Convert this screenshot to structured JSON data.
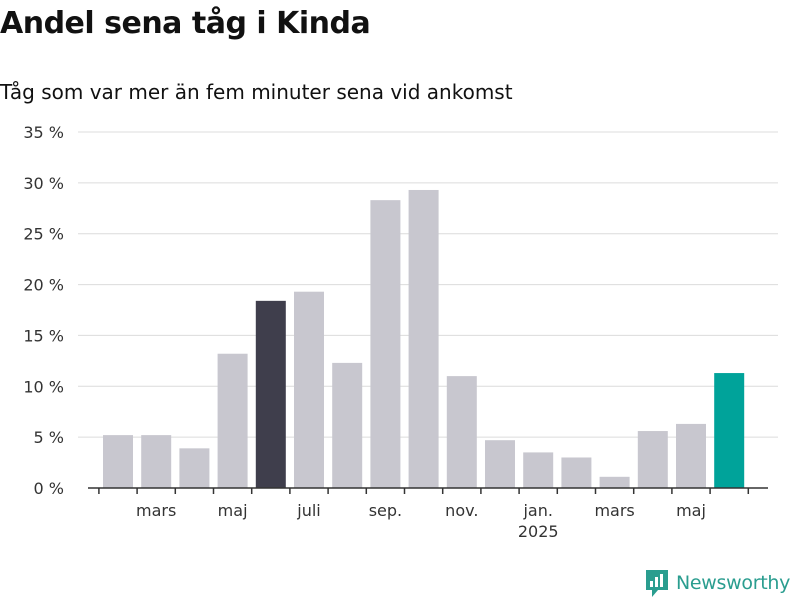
{
  "title": "Andel sena tåg i Kinda",
  "subtitle": "Tåg som var mer än fem minuter sena vid ankomst",
  "brand": {
    "name": "Newsworthy",
    "color": "#2a9d8f"
  },
  "colors": {
    "bar": "#c8c7cf",
    "highlight_dark": "#3f3e4c",
    "highlight_teal": "#00a39a",
    "grid": "#dcdcdc",
    "axis": "#333333"
  },
  "chart_data": {
    "type": "bar",
    "title": "Andel sena tåg i Kinda",
    "subtitle": "Tåg som var mer än fem minuter sena vid ankomst",
    "xlabel": "",
    "ylabel": "",
    "ylim": [
      0,
      35
    ],
    "y_ticks": [
      0,
      5,
      10,
      15,
      20,
      25,
      30,
      35
    ],
    "y_tick_labels": [
      "0 %",
      "5 %",
      "10 %",
      "15 %",
      "20 %",
      "25 %",
      "30 %",
      "35 %"
    ],
    "grid": true,
    "categories": [
      "2024-02",
      "2024-03",
      "2024-04",
      "2024-05",
      "2024-06",
      "2024-07",
      "2024-08",
      "2024-09",
      "2024-10",
      "2024-11",
      "2024-12",
      "2025-01",
      "2025-02",
      "2025-03",
      "2025-04",
      "2025-05",
      "2025-06"
    ],
    "values": [
      5.2,
      5.2,
      3.9,
      13.2,
      18.4,
      19.3,
      12.3,
      28.3,
      29.3,
      11.0,
      4.7,
      3.5,
      3.0,
      1.1,
      5.6,
      6.3,
      11.3
    ],
    "highlights": {
      "2024-06": "dark",
      "2025-06": "teal"
    },
    "x_tick_labels": [
      {
        "month": "2024-03",
        "label": "mars"
      },
      {
        "month": "2024-05",
        "label": "maj"
      },
      {
        "month": "2024-07",
        "label": "juli"
      },
      {
        "month": "2024-09",
        "label": "sep."
      },
      {
        "month": "2024-11",
        "label": "nov."
      },
      {
        "month": "2025-01",
        "label": "jan.",
        "sublabel": "2025"
      },
      {
        "month": "2025-03",
        "label": "mars"
      },
      {
        "month": "2025-05",
        "label": "maj"
      }
    ]
  }
}
